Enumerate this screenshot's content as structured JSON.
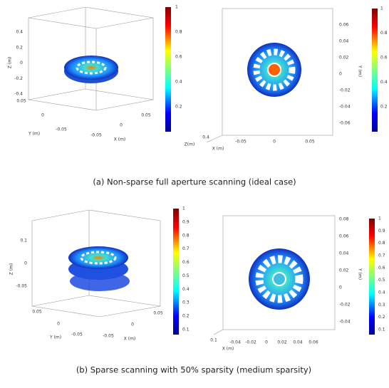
{
  "figure": {
    "panels": [
      {
        "caption": "(a) Non-sparse full aperture scanning (ideal case)",
        "view3d": {
          "z_label": "Z (m)",
          "z_ticks": [
            "0.4",
            "0.2",
            "0",
            "-0.2",
            "-0.4"
          ],
          "y_label": "Y (m)",
          "y_ticks": [
            "0.05",
            "0",
            "-0.05"
          ],
          "x_label": "X (m)",
          "x_ticks": [
            "0.05",
            "0",
            "-0.05"
          ],
          "colorbar_ticks": [
            "1",
            "0.8",
            "0.6",
            "0.4",
            "0.2"
          ]
        },
        "top_view": {
          "y_label": "Y (m)",
          "y_ticks": [
            "0.06",
            "0.04",
            "0.02",
            "0",
            "-0.02",
            "-0.04",
            "-0.06"
          ],
          "x_label": "X (m)",
          "x_ticks": [
            "-0.05",
            "0",
            "0.05"
          ],
          "z_label": "Z(m)",
          "z_tick": "0.4",
          "colorbar_ticks": [
            "1",
            "0.8",
            "0.6",
            "0.4",
            "0.2"
          ]
        }
      },
      {
        "caption": "(b) Sparse scanning with 50% sparsity (medium sparsity)",
        "view3d": {
          "z_label": "Z (m)",
          "z_ticks": [
            "0.1",
            "0",
            "-0.05"
          ],
          "y_label": "Y (m)",
          "y_ticks": [
            "0.05",
            "0",
            "-0.05"
          ],
          "x_label": "X (m)",
          "x_ticks": [
            "0.05",
            "0",
            "-0.05"
          ],
          "colorbar_ticks": [
            "1",
            "0.9",
            "0.8",
            "0.7",
            "0.6",
            "0.5",
            "0.4",
            "0.3",
            "0.2",
            "0.1"
          ]
        },
        "top_view": {
          "y_label": "Y (m)",
          "y_ticks": [
            "0.08",
            "0.06",
            "0.04",
            "0.02",
            "0",
            "-0.02",
            "-0.04"
          ],
          "x_label": "X (m)",
          "x_ticks": [
            "-0.04",
            "-0.02",
            "0",
            "0.02",
            "0.04",
            "0.06"
          ],
          "z_tick": "0.1",
          "colorbar_ticks": [
            "1",
            "0.9",
            "0.8",
            "0.7",
            "0.6",
            "0.5",
            "0.4",
            "0.3",
            "0.2",
            "0.1"
          ]
        }
      }
    ]
  }
}
